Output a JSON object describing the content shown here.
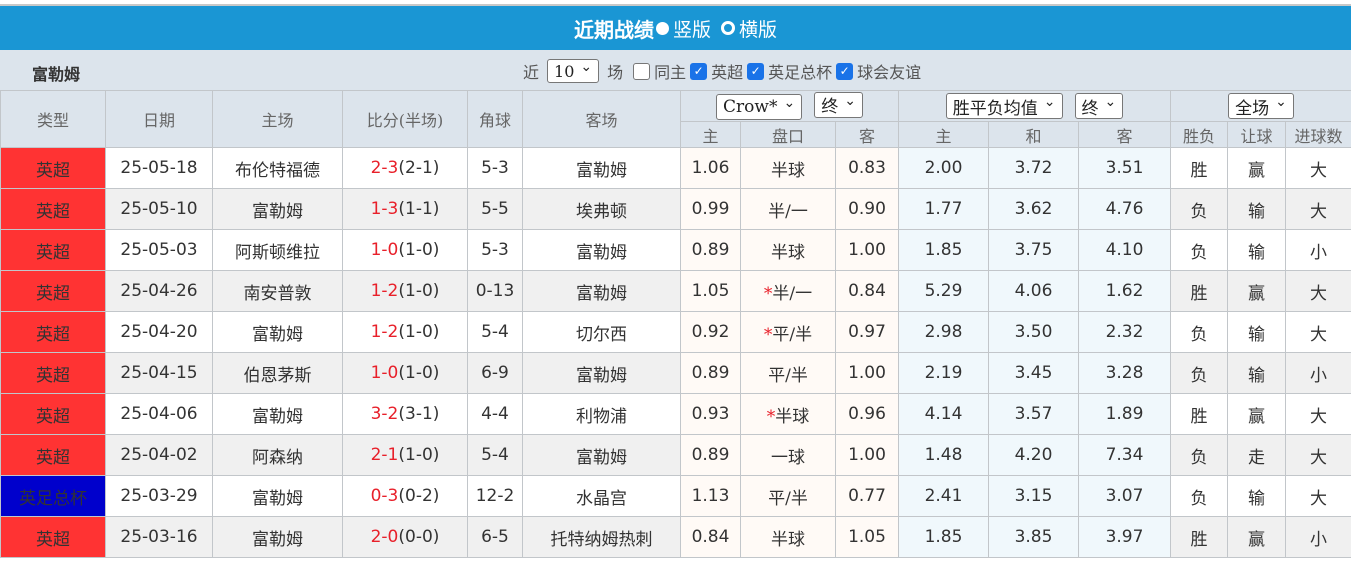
{
  "title": {
    "main": "近期战绩",
    "opt1": "竖版",
    "opt2": "横版",
    "selected": "竖版"
  },
  "filter": {
    "team": "富勒姆",
    "prefix": "近",
    "count": "10",
    "suffix": "场",
    "same_home": "同主",
    "same_home_checked": false,
    "leagues": [
      {
        "label": "英超",
        "checked": true
      },
      {
        "label": "英足总杯",
        "checked": true
      },
      {
        "label": "球会友谊",
        "checked": true
      }
    ]
  },
  "headers": {
    "type": "类型",
    "date": "日期",
    "home": "主场",
    "score": "比分(半场)",
    "corner": "角球",
    "away": "客场",
    "company_select": "Crow*",
    "ah_stage": "终",
    "eu_select": "胜平负均值",
    "eu_stage": "终",
    "result_select": "全场",
    "sub": [
      "主",
      "盘口",
      "客",
      "主",
      "和",
      "客",
      "胜负",
      "让球",
      "进球数"
    ]
  },
  "colors": {
    "league": "#ff3333",
    "cup": "#0000cc",
    "title_bar": "#1a96d4",
    "win": "#e8202a",
    "loss": "#4d8a4d",
    "draw": "#2222dd"
  },
  "rows": [
    {
      "type": "英超",
      "date": "25-05-18",
      "home": "布伦特福德",
      "score": "2-3",
      "half": "(2-1)",
      "corner": "5-3",
      "away": "富勒姆",
      "ah_home": "1.06",
      "ah_star": "",
      "ah_line": "半球",
      "ah_away": "0.83",
      "eu_home": "2.00",
      "eu_draw": "3.72",
      "eu_away": "3.51",
      "wl": "胜",
      "hc": "赢",
      "ou": "大"
    },
    {
      "type": "英超",
      "date": "25-05-10",
      "home": "富勒姆",
      "score": "1-3",
      "half": "(1-1)",
      "corner": "5-5",
      "away": "埃弗顿",
      "ah_home": "0.99",
      "ah_star": "",
      "ah_line": "半/一",
      "ah_away": "0.90",
      "eu_home": "1.77",
      "eu_draw": "3.62",
      "eu_away": "4.76",
      "wl": "负",
      "hc": "输",
      "ou": "大"
    },
    {
      "type": "英超",
      "date": "25-05-03",
      "home": "阿斯顿维拉",
      "score": "1-0",
      "half": "(1-0)",
      "corner": "5-3",
      "away": "富勒姆",
      "ah_home": "0.89",
      "ah_star": "",
      "ah_line": "半球",
      "ah_away": "1.00",
      "eu_home": "1.85",
      "eu_draw": "3.75",
      "eu_away": "4.10",
      "wl": "负",
      "hc": "输",
      "ou": "小"
    },
    {
      "type": "英超",
      "date": "25-04-26",
      "home": "南安普敦",
      "score": "1-2",
      "half": "(1-0)",
      "corner": "0-13",
      "away": "富勒姆",
      "ah_home": "1.05",
      "ah_star": "*",
      "ah_line": "半/一",
      "ah_away": "0.84",
      "eu_home": "5.29",
      "eu_draw": "4.06",
      "eu_away": "1.62",
      "wl": "胜",
      "hc": "赢",
      "ou": "大"
    },
    {
      "type": "英超",
      "date": "25-04-20",
      "home": "富勒姆",
      "score": "1-2",
      "half": "(1-0)",
      "corner": "5-4",
      "away": "切尔西",
      "ah_home": "0.92",
      "ah_star": "*",
      "ah_line": "平/半",
      "ah_away": "0.97",
      "eu_home": "2.98",
      "eu_draw": "3.50",
      "eu_away": "2.32",
      "wl": "负",
      "hc": "输",
      "ou": "大"
    },
    {
      "type": "英超",
      "date": "25-04-15",
      "home": "伯恩茅斯",
      "score": "1-0",
      "half": "(1-0)",
      "corner": "6-9",
      "away": "富勒姆",
      "ah_home": "0.89",
      "ah_star": "",
      "ah_line": "平/半",
      "ah_away": "1.00",
      "eu_home": "2.19",
      "eu_draw": "3.45",
      "eu_away": "3.28",
      "wl": "负",
      "hc": "输",
      "ou": "小"
    },
    {
      "type": "英超",
      "date": "25-04-06",
      "home": "富勒姆",
      "score": "3-2",
      "half": "(3-1)",
      "corner": "4-4",
      "away": "利物浦",
      "ah_home": "0.93",
      "ah_star": "*",
      "ah_line": "半球",
      "ah_away": "0.96",
      "eu_home": "4.14",
      "eu_draw": "3.57",
      "eu_away": "1.89",
      "wl": "胜",
      "hc": "赢",
      "ou": "大"
    },
    {
      "type": "英超",
      "date": "25-04-02",
      "home": "阿森纳",
      "score": "2-1",
      "half": "(1-0)",
      "corner": "5-4",
      "away": "富勒姆",
      "ah_home": "0.89",
      "ah_star": "",
      "ah_line": "一球",
      "ah_away": "1.00",
      "eu_home": "1.48",
      "eu_draw": "4.20",
      "eu_away": "7.34",
      "wl": "负",
      "hc": "走",
      "ou": "大"
    },
    {
      "type": "英足总杯",
      "date": "25-03-29",
      "home": "富勒姆",
      "score": "0-3",
      "half": "(0-2)",
      "corner": "12-2",
      "away": "水晶宫",
      "ah_home": "1.13",
      "ah_star": "",
      "ah_line": "平/半",
      "ah_away": "0.77",
      "eu_home": "2.41",
      "eu_draw": "3.15",
      "eu_away": "3.07",
      "wl": "负",
      "hc": "输",
      "ou": "大"
    },
    {
      "type": "英超",
      "date": "25-03-16",
      "home": "富勒姆",
      "score": "2-0",
      "half": "(0-0)",
      "corner": "6-5",
      "away": "托特纳姆热刺",
      "ah_home": "0.84",
      "ah_star": "",
      "ah_line": "半球",
      "ah_away": "1.05",
      "eu_home": "1.85",
      "eu_draw": "3.85",
      "eu_away": "3.97",
      "wl": "胜",
      "hc": "赢",
      "ou": "小"
    }
  ]
}
